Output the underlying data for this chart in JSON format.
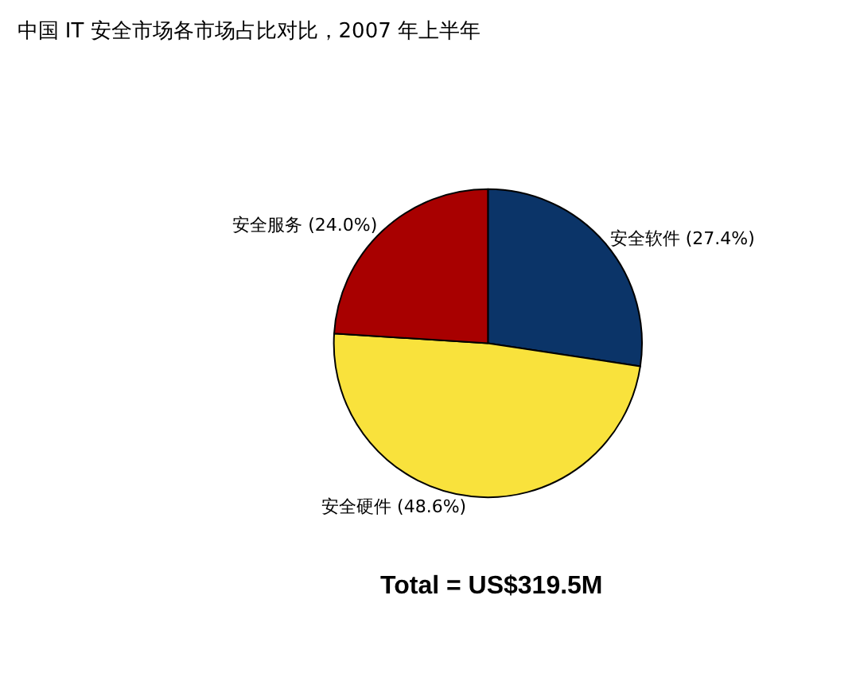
{
  "chart_data": {
    "type": "pie",
    "title": "中国 IT 安全市场各市场占比对比，2007 年上半年",
    "categories": [
      "安全软件",
      "安全硬件",
      "安全服务"
    ],
    "values": [
      27.4,
      48.6,
      24.0
    ],
    "colors": [
      "#0b3468",
      "#f9e23c",
      "#a80000"
    ],
    "value_labels": [
      "(27.4%)",
      "(48.6%)",
      "(24.0%)"
    ],
    "legend": false,
    "annotations": [
      "Total = US$319.5M"
    ]
  }
}
